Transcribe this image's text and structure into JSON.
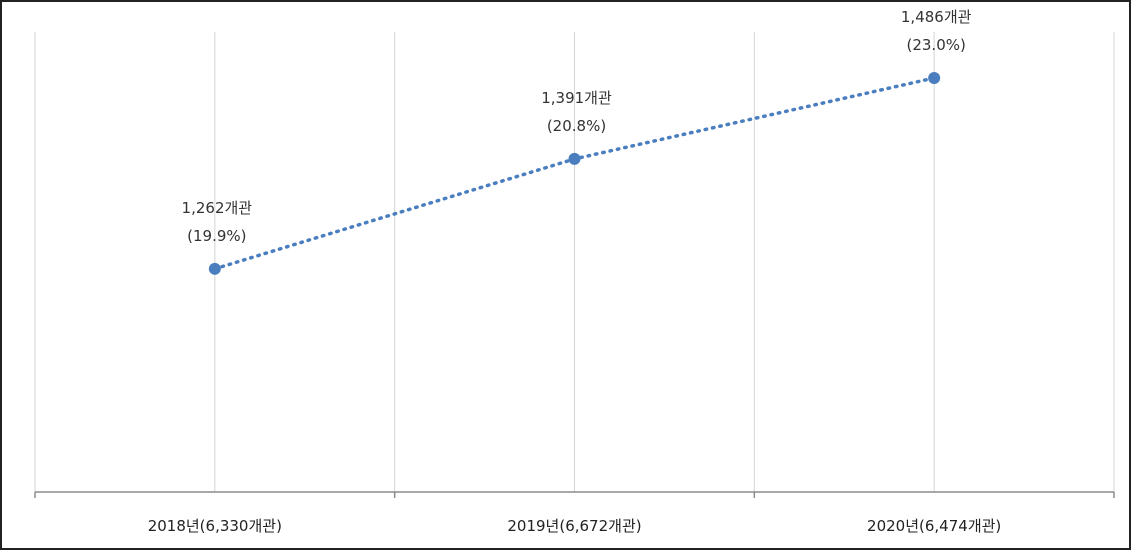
{
  "chart_data": {
    "type": "line",
    "categories": [
      "2018년(6,330개관)",
      "2019년(6,672개관)",
      "2020년(6,474개관)"
    ],
    "series": [
      {
        "values": [
          1262,
          1391,
          1486
        ],
        "color": "#4a7ebf",
        "line_style": "dotted",
        "marker": "circle"
      }
    ],
    "data_labels": [
      {
        "value": "1,262개관",
        "share": "(19.9%)"
      },
      {
        "value": "1,391개관",
        "share": "(20.8%)"
      },
      {
        "value": "1,486개관",
        "share": "(23.0%)"
      }
    ],
    "ylim": [
      1000,
      1540
    ],
    "y_axis_visible": false,
    "grid": "vertical",
    "legend": "none",
    "title": "",
    "xlabel": "",
    "ylabel": ""
  }
}
